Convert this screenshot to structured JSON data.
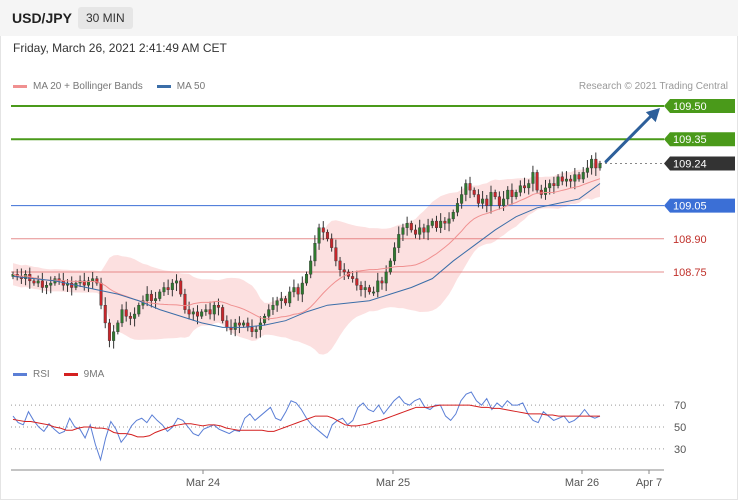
{
  "header": {
    "symbol": "USD/JPY",
    "timeframe": "30 MIN"
  },
  "datetime": "Friday, March 26, 2021 2:41:49 AM CET",
  "price_legend": [
    {
      "label": "MA 20 + Bollinger Bands",
      "color": "#f09090"
    },
    {
      "label": "MA 50",
      "color": "#3b6ea8"
    }
  ],
  "copyright": "Research © 2021 Trading Central",
  "rsi_legend": [
    {
      "label": "RSI",
      "color": "#5b7fd6"
    },
    {
      "label": "9MA",
      "color": "#d42020"
    }
  ],
  "colors": {
    "resistance": "#4a9a1a",
    "support_major": "#3b6fd6",
    "support_minor": "#e07070",
    "current": "#333333",
    "up_candle": "#2f7a2f",
    "down_candle": "#c8262b",
    "arrow": "#2d5f9a"
  },
  "chart_data": {
    "type": "candlestick",
    "instrument": "USD/JPY",
    "timeframe": "30 MIN",
    "x_ticks": [
      "Mar 24",
      "Mar 25",
      "Mar 26",
      "Apr 7"
    ],
    "levels": [
      {
        "value": 109.5,
        "label": "109.50",
        "kind": "resistance"
      },
      {
        "value": 109.35,
        "label": "109.35",
        "kind": "resistance"
      },
      {
        "value": 109.24,
        "label": "109.24",
        "kind": "current"
      },
      {
        "value": 109.05,
        "label": "109.05",
        "kind": "support"
      },
      {
        "value": 108.9,
        "label": "108.90",
        "kind": "support-minor"
      },
      {
        "value": 108.75,
        "label": "108.75",
        "kind": "support-minor"
      }
    ],
    "price_range": [
      108.38,
      109.62
    ],
    "close": [
      108.74,
      108.73,
      108.72,
      108.74,
      108.71,
      108.7,
      108.71,
      108.68,
      108.69,
      108.7,
      108.72,
      108.71,
      108.69,
      108.7,
      108.68,
      108.7,
      108.71,
      108.69,
      108.71,
      108.72,
      108.7,
      108.6,
      108.52,
      108.44,
      108.48,
      108.52,
      108.58,
      108.55,
      108.54,
      108.56,
      108.6,
      108.62,
      108.65,
      108.62,
      108.63,
      108.66,
      108.68,
      108.67,
      108.7,
      108.71,
      108.65,
      108.58,
      108.56,
      108.57,
      108.55,
      108.57,
      108.58,
      108.56,
      108.6,
      108.59,
      108.53,
      108.5,
      108.49,
      108.52,
      108.51,
      108.52,
      108.5,
      108.48,
      108.49,
      108.52,
      108.55,
      108.58,
      108.6,
      108.62,
      108.63,
      108.61,
      108.66,
      108.68,
      108.65,
      108.7,
      108.74,
      108.8,
      108.88,
      108.95,
      108.93,
      108.9,
      108.86,
      108.8,
      108.76,
      108.75,
      108.73,
      108.72,
      108.69,
      108.67,
      108.68,
      108.66,
      108.66,
      108.71,
      108.7,
      108.75,
      108.8,
      108.86,
      108.92,
      108.95,
      108.97,
      108.94,
      108.92,
      108.95,
      108.93,
      108.96,
      108.98,
      108.95,
      108.98,
      108.97,
      108.99,
      109.02,
      109.06,
      109.1,
      109.15,
      109.12,
      109.1,
      109.06,
      109.08,
      109.05,
      109.11,
      109.09,
      109.05,
      109.08,
      109.12,
      109.09,
      109.11,
      109.14,
      109.13,
      109.15,
      109.2,
      109.12,
      109.1,
      109.13,
      109.15,
      109.14,
      109.18,
      109.16,
      109.17,
      109.16,
      109.19,
      109.17,
      109.2,
      109.22,
      109.26,
      109.22,
      109.24
    ],
    "ma50": [
      108.73,
      108.72,
      108.71,
      108.69,
      108.67,
      108.65,
      108.62,
      108.58,
      108.55,
      108.52,
      108.5,
      108.5,
      108.51,
      108.53,
      108.57,
      108.6,
      108.61,
      108.62,
      108.65,
      108.68,
      108.72,
      108.8,
      108.87,
      108.94,
      109.0,
      109.04,
      109.06,
      109.08,
      109.15
    ],
    "rsi_ticks": [
      70,
      50,
      30
    ],
    "rsi_range": [
      18,
      82
    ],
    "rsi": [
      60,
      54,
      52,
      64,
      56,
      50,
      46,
      53,
      48,
      44,
      46,
      58,
      50,
      48,
      40,
      52,
      34,
      20,
      40,
      55,
      48,
      36,
      42,
      51,
      56,
      58,
      54,
      61,
      56,
      52,
      46,
      50,
      58,
      56,
      50,
      44,
      42,
      48,
      50,
      52,
      48,
      46,
      44,
      47,
      46,
      58,
      62,
      56,
      60,
      64,
      68,
      58,
      56,
      64,
      74,
      72,
      66,
      58,
      52,
      48,
      44,
      40,
      52,
      56,
      58,
      52,
      56,
      68,
      72,
      66,
      64,
      70,
      62,
      68,
      74,
      78,
      72,
      70,
      74,
      76,
      68,
      66,
      70,
      70,
      60,
      56,
      62,
      74,
      80,
      82,
      74,
      70,
      76,
      66,
      72,
      68,
      74,
      70,
      70,
      72,
      62,
      56,
      54,
      64,
      60,
      56,
      58,
      60,
      54,
      56,
      60,
      66,
      60,
      58,
      60
    ],
    "rsi_ma9": [
      57,
      56,
      55,
      55,
      54,
      53,
      52,
      50,
      49,
      47,
      47,
      49,
      50,
      50,
      49,
      49,
      48,
      45,
      44,
      44,
      43,
      41,
      41,
      42,
      45,
      47,
      49,
      51,
      52,
      53,
      53,
      52,
      51,
      52,
      52,
      51,
      49,
      48,
      47,
      47,
      47,
      47,
      47,
      46,
      46,
      48,
      50,
      52,
      54,
      56,
      58,
      60,
      60,
      60,
      58,
      55,
      52,
      51,
      51,
      52,
      53,
      55,
      56,
      58,
      60,
      62,
      64,
      66,
      68,
      68,
      68,
      69,
      70,
      70,
      70,
      70,
      70,
      70,
      69,
      68,
      68,
      67,
      67,
      66,
      65,
      64,
      63,
      62,
      62,
      62,
      61,
      61,
      60,
      60,
      60,
      60,
      60,
      60,
      60,
      60
    ]
  }
}
